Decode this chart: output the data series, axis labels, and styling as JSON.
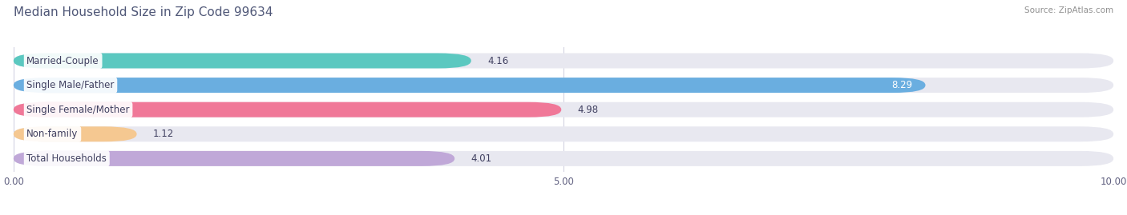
{
  "title": "Median Household Size in Zip Code 99634",
  "source": "Source: ZipAtlas.com",
  "categories": [
    "Married-Couple",
    "Single Male/Father",
    "Single Female/Mother",
    "Non-family",
    "Total Households"
  ],
  "values": [
    4.16,
    8.29,
    4.98,
    1.12,
    4.01
  ],
  "bar_colors": [
    "#5bc8c0",
    "#6aaee0",
    "#f07898",
    "#f5c891",
    "#c0a8d8"
  ],
  "bar_bg_color": "#e8e8f0",
  "value_inside": [
    false,
    true,
    false,
    false,
    false
  ],
  "xlim": [
    0,
    10
  ],
  "xticks": [
    0.0,
    5.0,
    10.0
  ],
  "xtick_labels": [
    "0.00",
    "5.00",
    "10.00"
  ],
  "title_color": "#505878",
  "title_fontsize": 11,
  "label_fontsize": 8.5,
  "value_fontsize": 8.5,
  "source_fontsize": 7.5,
  "source_color": "#909090"
}
